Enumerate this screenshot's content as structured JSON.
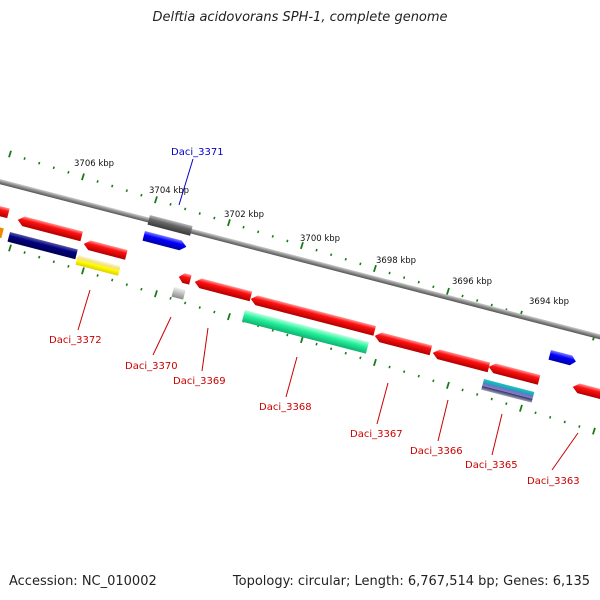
{
  "title": "Delftia acidovorans SPH-1, complete genome",
  "accession_text": "Accession: NC_010002",
  "summary_text": "Topology: circular; Length: 6,767,514 bp; Genes: 6,135",
  "scale_labels": [
    "3706 kbp",
    "3704 kbp",
    "3702 kbp",
    "3700 kbp",
    "3698 kbp",
    "3696 kbp",
    "3694 kbp"
  ],
  "gene_labels": [
    {
      "name": "Daci_3371",
      "color": "#0000cc"
    },
    {
      "name": "Daci_3372",
      "color": "#cc0000"
    },
    {
      "name": "Daci_3370",
      "color": "#cc0000"
    },
    {
      "name": "Daci_3369",
      "color": "#cc0000"
    },
    {
      "name": "Daci_3368",
      "color": "#cc0000"
    },
    {
      "name": "Daci_3367",
      "color": "#cc0000"
    },
    {
      "name": "Daci_3366",
      "color": "#cc0000"
    },
    {
      "name": "Daci_3365",
      "color": "#cc0000"
    },
    {
      "name": "Daci_3363",
      "color": "#cc0000"
    }
  ],
  "colors": {
    "backbone": "#8a8a8a",
    "tick": "#1a7a1a",
    "red_gene": "#ff0000",
    "blue_gene": "#0000ff",
    "navy_gene": "#000080",
    "green_gene": "#33ffaa",
    "yellow_gene": "#ffff00",
    "gray_gene": "#666666"
  }
}
